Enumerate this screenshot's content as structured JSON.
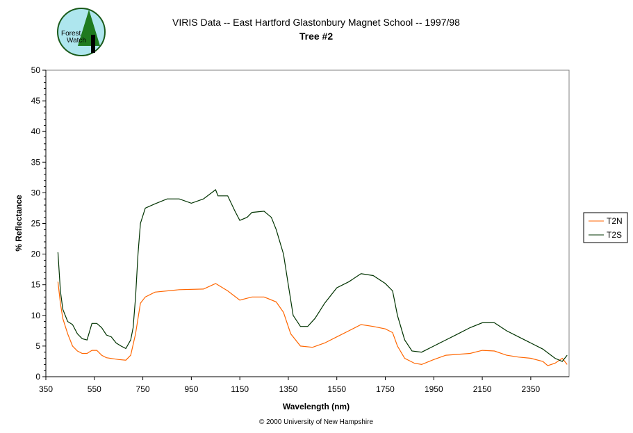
{
  "logo": {
    "text_line1": "Forest",
    "text_line2": "Watch"
  },
  "copyright": "© 2000 University of New Hampshire",
  "chart_data": {
    "type": "line",
    "title": "VIRIS Data -- East Hartford Glastonbury Magnet School -- 1997/98",
    "subtitle": "Tree #2",
    "xlabel": "Wavelength (nm)",
    "ylabel": "% Reflectance",
    "xlim": [
      350,
      2508
    ],
    "ylim": [
      0,
      50
    ],
    "xticks": [
      350,
      550,
      750,
      950,
      1150,
      1350,
      1550,
      1750,
      1950,
      2150,
      2350
    ],
    "yticks": [
      0,
      5,
      10,
      15,
      20,
      25,
      30,
      35,
      40,
      45,
      50
    ],
    "grid": false,
    "legend_position": "right",
    "series": [
      {
        "name": "T2N",
        "color": "#ff6600",
        "x": [
          400,
          410,
          420,
          440,
          460,
          480,
          500,
          520,
          540,
          560,
          580,
          600,
          650,
          680,
          700,
          720,
          740,
          760,
          800,
          900,
          1000,
          1050,
          1100,
          1150,
          1200,
          1250,
          1300,
          1330,
          1360,
          1400,
          1450,
          1500,
          1550,
          1600,
          1650,
          1700,
          1750,
          1780,
          1800,
          1830,
          1870,
          1900,
          1950,
          2000,
          2100,
          2150,
          2200,
          2250,
          2300,
          2350,
          2400,
          2420,
          2450,
          2480,
          2500
        ],
        "y": [
          15.5,
          12,
          9.5,
          7,
          5,
          4.2,
          3.8,
          3.8,
          4.3,
          4.3,
          3.5,
          3.1,
          2.8,
          2.7,
          3.5,
          7,
          12,
          13,
          13.8,
          14.2,
          14.3,
          15.2,
          14,
          12.5,
          13,
          13,
          12.2,
          10.5,
          7,
          5,
          4.8,
          5.5,
          6.5,
          7.5,
          8.5,
          8.2,
          7.8,
          7.2,
          5,
          3,
          2.2,
          2,
          2.8,
          3.5,
          3.8,
          4.3,
          4.2,
          3.5,
          3.2,
          3,
          2.5,
          1.8,
          2.2,
          3,
          2
        ]
      },
      {
        "name": "T2S",
        "color": "#003300",
        "x": [
          400,
          410,
          420,
          440,
          460,
          480,
          500,
          520,
          540,
          560,
          580,
          600,
          620,
          640,
          660,
          680,
          700,
          710,
          720,
          730,
          740,
          760,
          800,
          850,
          900,
          950,
          1000,
          1050,
          1060,
          1100,
          1130,
          1150,
          1180,
          1200,
          1250,
          1280,
          1300,
          1330,
          1350,
          1370,
          1400,
          1430,
          1460,
          1500,
          1550,
          1600,
          1650,
          1700,
          1750,
          1780,
          1800,
          1830,
          1860,
          1900,
          1950,
          2000,
          2050,
          2100,
          2150,
          2200,
          2250,
          2300,
          2350,
          2400,
          2450,
          2480,
          2500
        ],
        "y": [
          20.3,
          14,
          11,
          9,
          8.5,
          7,
          6.2,
          6,
          8.7,
          8.7,
          8,
          6.8,
          6.5,
          5.5,
          5,
          4.6,
          6,
          8,
          13,
          20,
          25,
          27.5,
          28.2,
          29,
          29,
          28.3,
          29,
          30.5,
          29.5,
          29.5,
          27,
          25.5,
          26,
          26.8,
          27,
          26,
          24,
          20,
          15,
          10,
          8.2,
          8.2,
          9.5,
          12,
          14.5,
          15.5,
          16.8,
          16.5,
          15.2,
          14,
          10,
          6,
          4.2,
          4,
          5,
          6,
          7,
          8,
          8.8,
          8.8,
          7.5,
          6.5,
          5.5,
          4.5,
          3,
          2.5,
          3.5
        ]
      }
    ]
  }
}
